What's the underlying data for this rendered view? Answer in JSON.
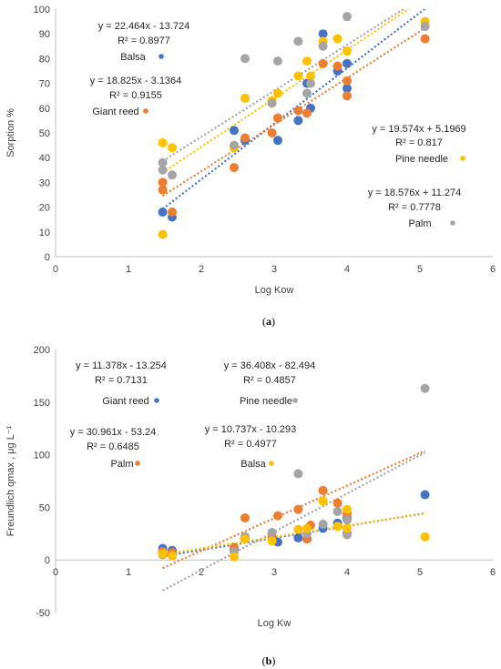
{
  "chart_data": [
    {
      "type": "scatter",
      "panel": "(a)",
      "xlabel": "Log Kow",
      "ylabel": "Sorption %",
      "xlim": [
        0,
        6
      ],
      "ylim": [
        0,
        100
      ],
      "xticks": [
        0,
        1,
        2,
        3,
        4,
        5,
        6
      ],
      "yticks": [
        0,
        10,
        20,
        30,
        40,
        50,
        60,
        70,
        80,
        90,
        100
      ],
      "grid": false,
      "series": [
        {
          "name": "Balsa",
          "color": "#4472C4",
          "trendline": {
            "slope": 22.464,
            "intercept": -13.724,
            "x_range": [
              1.47,
              5.07
            ]
          },
          "equation": "y = 22.464x - 13.724",
          "r2": "R² = 0.8977",
          "points": [
            [
              1.47,
              18
            ],
            [
              1.6,
              16
            ],
            [
              2.45,
              51
            ],
            [
              2.6,
              47
            ],
            [
              3.05,
              47
            ],
            [
              3.33,
              55
            ],
            [
              3.45,
              70
            ],
            [
              3.5,
              60
            ],
            [
              3.67,
              90
            ],
            [
              3.87,
              75
            ],
            [
              4.0,
              68
            ],
            [
              4.0,
              78
            ]
          ]
        },
        {
          "name": "Giant reed",
          "color": "#ED7D31",
          "trendline": {
            "slope": 18.825,
            "intercept": -3.1364,
            "x_range": [
              1.47,
              5.07
            ]
          },
          "equation": "y = 18.825x - 3.1364",
          "r2": "R² = 0.9155",
          "points": [
            [
              1.47,
              27
            ],
            [
              1.47,
              30
            ],
            [
              1.6,
              18
            ],
            [
              2.45,
              36
            ],
            [
              2.6,
              48
            ],
            [
              2.97,
              50
            ],
            [
              3.05,
              56
            ],
            [
              3.33,
              59
            ],
            [
              3.45,
              58
            ],
            [
              3.67,
              78
            ],
            [
              3.87,
              77
            ],
            [
              4.0,
              65
            ],
            [
              4.0,
              71
            ],
            [
              5.07,
              88
            ]
          ]
        },
        {
          "name": "Pine needle",
          "color": "#FFC000",
          "trendline": {
            "slope": 19.574,
            "intercept": 5.1969,
            "x_range": [
              1.47,
              5.07
            ]
          },
          "equation": "y = 19.574x + 5.1969",
          "r2": "R² = 0.817",
          "points": [
            [
              1.47,
              9
            ],
            [
              1.47,
              46
            ],
            [
              1.6,
              44
            ],
            [
              2.45,
              44
            ],
            [
              2.6,
              64
            ],
            [
              2.97,
              63
            ],
            [
              3.05,
              66
            ],
            [
              3.33,
              73
            ],
            [
              3.45,
              79
            ],
            [
              3.5,
              73
            ],
            [
              3.67,
              87
            ],
            [
              3.87,
              88
            ],
            [
              4.0,
              83
            ],
            [
              5.07,
              95
            ]
          ]
        },
        {
          "name": "Palm",
          "color": "#A5A5A5",
          "trendline": {
            "slope": 18.576,
            "intercept": 11.274,
            "x_range": [
              1.47,
              5.07
            ]
          },
          "equation": "y = 18.576x + 11.274",
          "r2": "R² = 0.7778",
          "points": [
            [
              1.47,
              38
            ],
            [
              1.47,
              35
            ],
            [
              1.6,
              33
            ],
            [
              2.45,
              45
            ],
            [
              2.6,
              80
            ],
            [
              2.97,
              62
            ],
            [
              3.05,
              79
            ],
            [
              3.33,
              87
            ],
            [
              3.45,
              66
            ],
            [
              3.5,
              70
            ],
            [
              3.67,
              85
            ],
            [
              4.0,
              97
            ],
            [
              5.07,
              93
            ]
          ]
        }
      ]
    },
    {
      "type": "scatter",
      "panel": "(b)",
      "xlabel": "Log Kw",
      "ylabel": "Freundlich qmax , μg L⁻¹",
      "xlim": [
        0,
        6
      ],
      "ylim": [
        -50,
        200
      ],
      "xticks": [
        0,
        1,
        2,
        3,
        4,
        5,
        6
      ],
      "yticks": [
        -50,
        0,
        50,
        100,
        150,
        200
      ],
      "grid": false,
      "series": [
        {
          "name": "Giant reed",
          "color": "#4472C4",
          "trendline": {
            "slope": 11.378,
            "intercept": -13.254,
            "x_range": [
              1.47,
              5.07
            ]
          },
          "equation": "y = 11.378x - 13.254",
          "r2": "R² = 0.7131",
          "points": [
            [
              1.47,
              11
            ],
            [
              1.6,
              9
            ],
            [
              2.45,
              10
            ],
            [
              2.6,
              21
            ],
            [
              2.97,
              26
            ],
            [
              3.05,
              17
            ],
            [
              3.33,
              21
            ],
            [
              3.45,
              20
            ],
            [
              3.67,
              30
            ],
            [
              3.87,
              35
            ],
            [
              4.0,
              25
            ],
            [
              4.0,
              40
            ],
            [
              5.07,
              62
            ]
          ]
        },
        {
          "name": "Palm",
          "color": "#ED7D31",
          "trendline": {
            "slope": 30.961,
            "intercept": -53.24,
            "x_range": [
              1.47,
              5.07
            ]
          },
          "equation": "y = 30.961x - 53.24",
          "r2": "R² = 0.6485",
          "points": [
            [
              1.47,
              8
            ],
            [
              1.6,
              7
            ],
            [
              2.45,
              12
            ],
            [
              2.6,
              40
            ],
            [
              2.97,
              22
            ],
            [
              3.05,
              42
            ],
            [
              3.33,
              48
            ],
            [
              3.45,
              20
            ],
            [
              3.5,
              33
            ],
            [
              3.67,
              66
            ],
            [
              3.87,
              54
            ],
            [
              4.0,
              44
            ]
          ]
        },
        {
          "name": "Pine needle",
          "color": "#A5A5A5",
          "trendline": {
            "slope": 36.408,
            "intercept": -82.494,
            "x_range": [
              1.47,
              5.07
            ]
          },
          "equation": "y = 36.408x - 82.494",
          "r2": "R² = 0.4857",
          "points": [
            [
              1.47,
              5
            ],
            [
              1.6,
              4
            ],
            [
              2.45,
              8
            ],
            [
              2.6,
              22
            ],
            [
              2.97,
              26
            ],
            [
              3.33,
              82
            ],
            [
              3.45,
              25
            ],
            [
              3.67,
              34
            ],
            [
              3.87,
              46
            ],
            [
              4.0,
              24
            ],
            [
              4.0,
              38
            ],
            [
              5.07,
              163
            ]
          ]
        },
        {
          "name": "Balsa",
          "color": "#FFC000",
          "trendline": {
            "slope": 10.737,
            "intercept": -10.293,
            "x_range": [
              1.47,
              5.07
            ]
          },
          "equation": "y = 10.737x - 10.293",
          "r2": "R² = 0.4977",
          "points": [
            [
              1.47,
              6
            ],
            [
              1.6,
              4
            ],
            [
              2.45,
              3
            ],
            [
              2.6,
              20
            ],
            [
              2.97,
              18
            ],
            [
              3.33,
              29
            ],
            [
              3.45,
              30
            ],
            [
              3.67,
              56
            ],
            [
              3.87,
              32
            ],
            [
              4.0,
              48
            ],
            [
              4.0,
              30
            ],
            [
              5.07,
              22
            ]
          ]
        }
      ]
    }
  ]
}
